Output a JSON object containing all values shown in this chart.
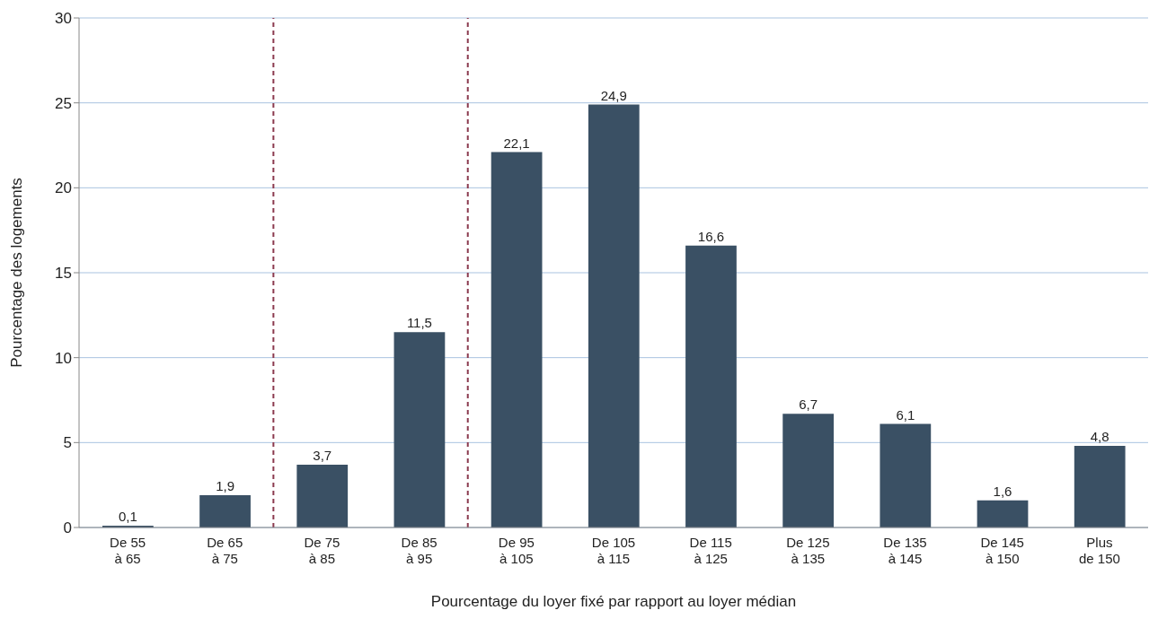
{
  "chart_data": {
    "type": "bar",
    "xlabel": "Pourcentage du loyer fixé par rapport au loyer médian",
    "ylabel": "Pourcentage des logements",
    "categories": [
      "De 55\nà 65",
      "De 65\nà 75",
      "De 75\nà 85",
      "De 85\nà 95",
      "De 95\nà 105",
      "De 105\nà 115",
      "De 115\nà 125",
      "De 125\nà 135",
      "De 135\nà 145",
      "De 145\nà 150",
      "Plus\nde 150"
    ],
    "values": [
      0.1,
      1.9,
      3.7,
      11.5,
      22.1,
      24.9,
      16.6,
      6.7,
      6.1,
      1.6,
      4.8
    ],
    "value_labels": [
      "0,1",
      "1,9",
      "3,7",
      "11,5",
      "22,1",
      "24,9",
      "16,6",
      "6,7",
      "6,1",
      "1,6",
      "4,8"
    ],
    "color": "#3a5064",
    "ylim": [
      0,
      30
    ],
    "yticks": [
      0,
      5,
      10,
      15,
      20,
      25,
      30
    ],
    "grid": "y"
  }
}
